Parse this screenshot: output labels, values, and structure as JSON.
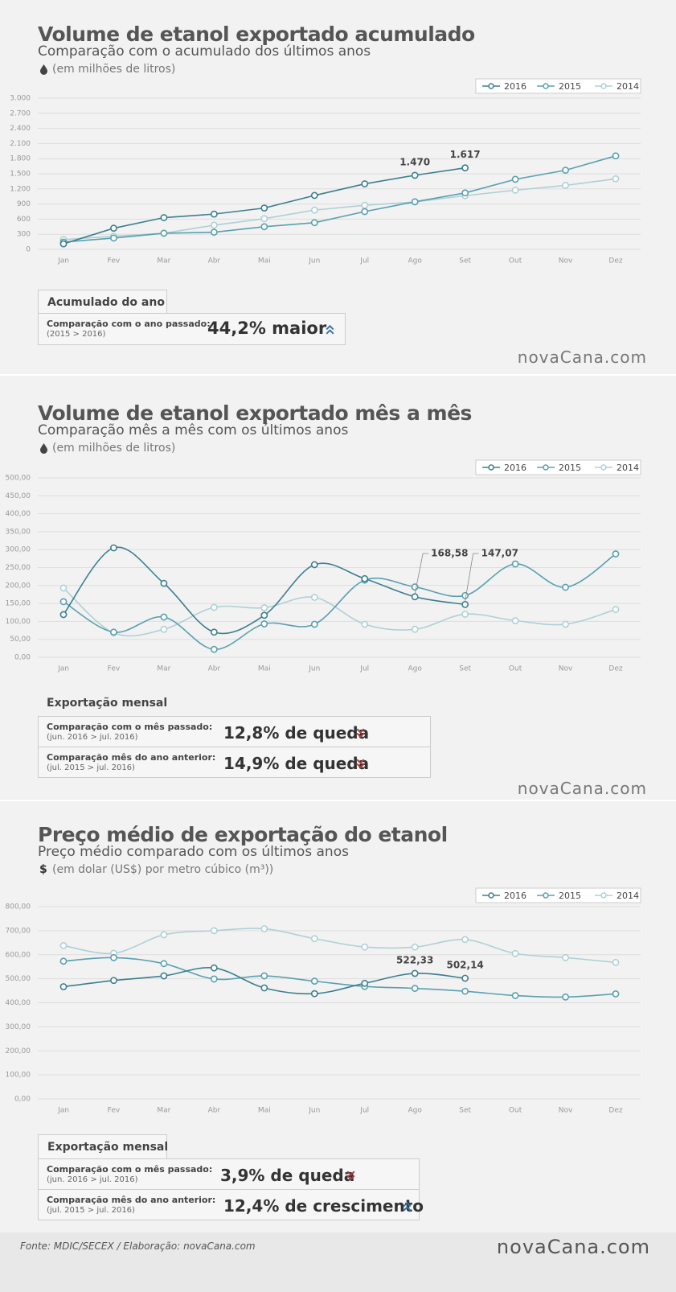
{
  "chart_data": [
    {
      "type": "line",
      "title": "Volume de etanol exportado acumulado",
      "subtitle": "Comparação com o acumulado dos últimos anos",
      "unit_note": "(em milhões de litros)",
      "smooth": false,
      "grid": true,
      "legend": "top-right",
      "categories": [
        "Jan",
        "Fev",
        "Mar",
        "Abr",
        "Mai",
        "Jun",
        "Jul",
        "Ago",
        "Set",
        "Out",
        "Nov",
        "Dez"
      ],
      "ylim": [
        0,
        3000
      ],
      "yticks": [
        0,
        300,
        600,
        900,
        {
          "value": 1200,
          "label": "1.200"
        },
        {
          "value": 1500,
          "label": "1.500"
        },
        {
          "value": 1800,
          "label": "1.800"
        },
        {
          "value": 2100,
          "label": "2.100"
        },
        {
          "value": 2400,
          "label": "2.400"
        },
        {
          "value": 2700,
          "label": "2.700"
        },
        {
          "value": 3000,
          "label": "3.000"
        }
      ],
      "series": [
        {
          "name": "2016",
          "color": "#3d7f8f",
          "values": [
            110,
            420,
            630,
            700,
            820,
            1070,
            1300,
            1470,
            1617,
            null,
            null,
            null
          ],
          "value_labels": [
            null,
            null,
            null,
            null,
            null,
            null,
            null,
            "1.470",
            "1.617",
            null,
            null,
            null
          ]
        },
        {
          "name": "2015",
          "color": "#5aa0b0",
          "values": [
            145,
            225,
            320,
            340,
            450,
            530,
            750,
            945,
            1120,
            1390,
            1570,
            1855
          ]
        },
        {
          "name": "2014",
          "color": "#afd0d6",
          "values": [
            195,
            260,
            320,
            480,
            610,
            780,
            875,
            940,
            1065,
            1175,
            1270,
            1400
          ]
        }
      ]
    },
    {
      "type": "line",
      "title": "Volume de etanol exportado mês a mês",
      "subtitle": "Comparação mês a mês com os últimos anos",
      "unit_note": "(em milhões de litros)",
      "smooth": true,
      "grid": true,
      "legend": "top-right",
      "categories": [
        "Jan",
        "Fev",
        "Mar",
        "Abr",
        "Mai",
        "Jun",
        "Jul",
        "Ago",
        "Set",
        "Out",
        "Nov",
        "Dez"
      ],
      "ylim": [
        0,
        500
      ],
      "yticks": [
        {
          "value": 0,
          "label": "0,00"
        },
        {
          "value": 50,
          "label": "50,00"
        },
        {
          "value": 100,
          "label": "100,00"
        },
        {
          "value": 150,
          "label": "150,00"
        },
        {
          "value": 200,
          "label": "200,00"
        },
        {
          "value": 250,
          "label": "250,00"
        },
        {
          "value": 300,
          "label": "300,00"
        },
        {
          "value": 350,
          "label": "350,00"
        },
        {
          "value": 400,
          "label": "400,00"
        },
        {
          "value": 450,
          "label": "450,00"
        },
        {
          "value": 500,
          "label": "500,00"
        }
      ],
      "series": [
        {
          "name": "2016",
          "color": "#3d7f8f",
          "values": [
            119,
            305,
            206,
            70,
            117,
            258,
            219,
            168.58,
            147.07,
            null,
            null,
            null
          ],
          "value_labels": [
            null,
            null,
            null,
            null,
            null,
            null,
            null,
            "168,58",
            "147,07",
            null,
            null,
            null
          ]
        },
        {
          "name": "2015",
          "color": "#5aa0b0",
          "values": [
            155,
            70,
            112,
            22,
            93,
            92,
            215,
            196,
            172,
            260,
            195,
            288
          ]
        },
        {
          "name": "2014",
          "color": "#afd0d6",
          "values": [
            193,
            68,
            78,
            139,
            138,
            167,
            92,
            78,
            120,
            102,
            92,
            133
          ]
        }
      ]
    },
    {
      "type": "line",
      "title": "Preço médio de exportação do etanol",
      "subtitle": "Preço médio comparado com os últimos anos",
      "unit_symbol": "$",
      "unit_note": "(em dolar (US$) por metro cúbico (m³))",
      "smooth": true,
      "grid": true,
      "legend": "top-right",
      "categories": [
        "Jan",
        "Fev",
        "Mar",
        "Abr",
        "Mai",
        "Jun",
        "Jul",
        "Ago",
        "Set",
        "Out",
        "Nov",
        "Dez"
      ],
      "ylim": [
        0,
        800
      ],
      "yticks": [
        {
          "value": 0,
          "label": "0,00"
        },
        {
          "value": 100,
          "label": "100,00"
        },
        {
          "value": 200,
          "label": "200,00"
        },
        {
          "value": 300,
          "label": "300,00"
        },
        {
          "value": 400,
          "label": "400,00"
        },
        {
          "value": 500,
          "label": "500,00"
        },
        {
          "value": 600,
          "label": "600,00"
        },
        {
          "value": 700,
          "label": "700,00"
        },
        {
          "value": 800,
          "label": "800,00"
        }
      ],
      "series": [
        {
          "name": "2016",
          "color": "#3d7f8f",
          "values": [
            467,
            493,
            512,
            545,
            462,
            438,
            481,
            522.33,
            502.14,
            null,
            null,
            null
          ],
          "value_labels": [
            null,
            null,
            null,
            null,
            null,
            null,
            null,
            "522,33",
            "502,14",
            null,
            null,
            null
          ]
        },
        {
          "name": "2015",
          "color": "#5aa0b0",
          "values": [
            573,
            588,
            563,
            499,
            512,
            490,
            468,
            460,
            448,
            430,
            424,
            437
          ]
        },
        {
          "name": "2014",
          "color": "#afd0d6",
          "values": [
            638,
            606,
            683,
            700,
            708,
            667,
            632,
            632,
            663,
            605,
            588,
            568
          ]
        }
      ]
    }
  ],
  "panels": [
    {
      "summary": {
        "heading": "Acumulado do ano",
        "rows": [
          {
            "label": "Comparação com o ano passado:",
            "detail": "(2015 > 2016)",
            "result": "44,2% maior"
          }
        ]
      },
      "logo": "novaCana.com"
    },
    {
      "summary": {
        "heading": "Exportação mensal",
        "rows": [
          {
            "label": "Comparação com o mês passado:",
            "detail": "(jun. 2016 > jul. 2016)",
            "result": "12,8% de queda"
          },
          {
            "label": "Comparação mês do ano anterior:",
            "detail": "(jul. 2015 > jul. 2016)",
            "result": "14,9% de queda"
          }
        ]
      },
      "logo": "novaCana.com"
    },
    {
      "summary": {
        "heading": "Exportação mensal",
        "rows": [
          {
            "label": "Comparação com o mês passado:",
            "detail": "(jun. 2016 > jul. 2016)",
            "result": "3,9% de queda"
          },
          {
            "label": "Comparação mês do ano anterior:",
            "detail": "(jul. 2015 > jul. 2016)",
            "result": "12,4% de crescimento"
          }
        ]
      }
    }
  ],
  "footer": {
    "source": "Fonte: MDIC/SECEX  / Elaboração: novaCana.com",
    "logo": "novaCana.com"
  }
}
